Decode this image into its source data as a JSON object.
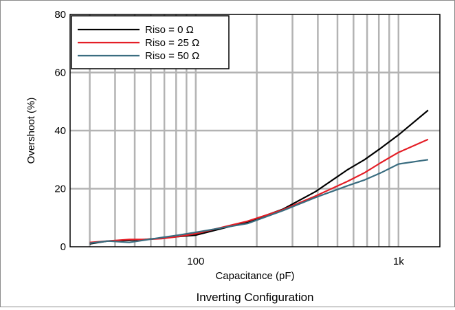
{
  "chart_data": {
    "type": "line",
    "title": "",
    "caption": "Inverting Configuration",
    "xlabel": "Capacitance (pF)",
    "ylabel": "Overshoot (%)",
    "x_scale": "log",
    "xlim": [
      24,
      1600
    ],
    "ylim": [
      0,
      80
    ],
    "x_tick_labels": [
      {
        "value": 100,
        "label": "100"
      },
      {
        "value": 1000,
        "label": "1k"
      }
    ],
    "y_tick_labels": [
      {
        "value": 0,
        "label": "0"
      },
      {
        "value": 20,
        "label": "20"
      },
      {
        "value": 40,
        "label": "40"
      },
      {
        "value": 60,
        "label": "60"
      },
      {
        "value": 80,
        "label": "80"
      }
    ],
    "grid": true,
    "legend_position": "top-left",
    "series": [
      {
        "name": "Riso = 0 Ω",
        "color": "#000000",
        "x": [
          30,
          37,
          47,
          56,
          68,
          82,
          100,
          180,
          270,
          390,
          560,
          680,
          820,
          1000,
          1400
        ],
        "y": [
          1.0,
          2.0,
          2.2,
          2.5,
          3.0,
          3.5,
          4.0,
          8.5,
          13.0,
          19.0,
          26.5,
          30.0,
          34.0,
          38.5,
          47.0
        ]
      },
      {
        "name": "Riso = 25 Ω",
        "color": "#e41e26",
        "x": [
          30,
          37,
          47,
          56,
          68,
          82,
          100,
          180,
          270,
          390,
          560,
          680,
          820,
          1000,
          1400
        ],
        "y": [
          1.5,
          2.0,
          2.5,
          2.5,
          2.8,
          3.5,
          4.5,
          8.8,
          12.8,
          17.5,
          22.5,
          25.5,
          29.0,
          32.5,
          37.0
        ]
      },
      {
        "name": "Riso = 50 Ω",
        "color": "#3a6d80",
        "x": [
          30,
          37,
          47,
          56,
          68,
          82,
          100,
          180,
          270,
          390,
          560,
          680,
          820,
          1000,
          1400
        ],
        "y": [
          1.2,
          2.0,
          1.5,
          2.3,
          3.2,
          4.0,
          5.0,
          8.0,
          12.5,
          17.0,
          21.0,
          23.0,
          25.5,
          28.5,
          30.0
        ]
      }
    ]
  }
}
